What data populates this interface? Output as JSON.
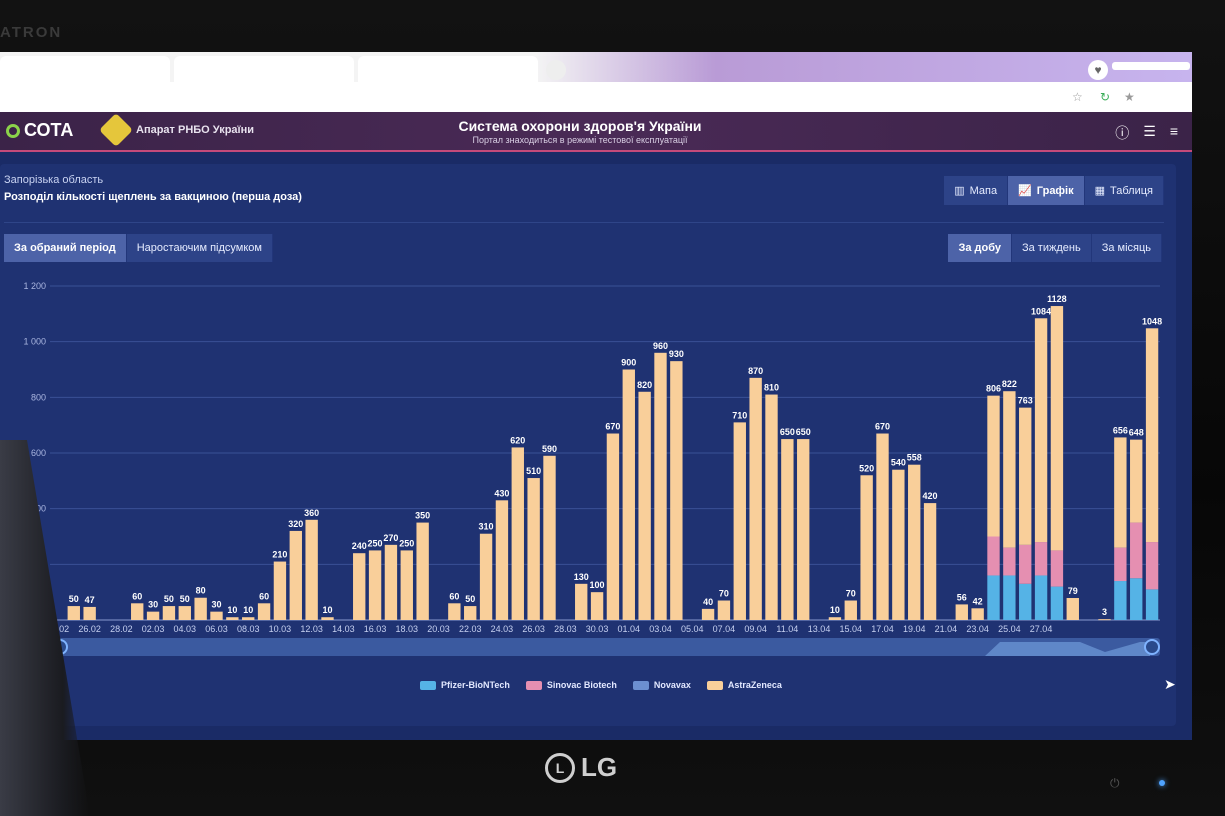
{
  "monitor": {
    "brand": "LG",
    "model": "ATRON"
  },
  "app": {
    "logo": "СОТА",
    "agency": "Апарат РНБО України",
    "title": "Система охорони здоров'я України",
    "subtitle": "Портал знаходиться в режимі тестової експлуатації"
  },
  "panel": {
    "region": "Запорізька область",
    "title": "Розподіл кількості щеплень за вакциною (перша доза)"
  },
  "view_buttons": [
    "Мапа",
    "Графік",
    "Таблиця"
  ],
  "period_buttons": [
    "За обраний період",
    "Наростаючим підсумком"
  ],
  "freq_buttons": [
    "За добу",
    "За тиждень",
    "За місяць"
  ],
  "chart_data": {
    "type": "bar",
    "stacked": true,
    "ylim": [
      0,
      1200
    ],
    "yticks": [
      "1 200",
      "1 000",
      "800",
      "600",
      "400",
      "200"
    ],
    "x_tick_labels": [
      "24.02",
      "26.02",
      "28.02",
      "02.03",
      "04.03",
      "06.03",
      "08.03",
      "10.03",
      "12.03",
      "14.03",
      "16.03",
      "18.03",
      "20.03",
      "22.03",
      "24.03",
      "26.03",
      "28.03",
      "30.03",
      "01.04",
      "03.04",
      "05.04",
      "07.04",
      "09.04",
      "11.04",
      "13.04",
      "15.04",
      "17.04",
      "19.04",
      "21.04",
      "23.04",
      "25.04",
      "27.04"
    ],
    "totals": [
      null,
      50,
      47,
      null,
      null,
      60,
      30,
      50,
      50,
      80,
      30,
      10,
      10,
      60,
      210,
      320,
      360,
      10,
      null,
      240,
      250,
      270,
      250,
      350,
      null,
      60,
      50,
      310,
      430,
      620,
      510,
      590,
      null,
      130,
      100,
      670,
      900,
      820,
      960,
      930,
      null,
      40,
      70,
      710,
      870,
      810,
      650,
      650,
      null,
      10,
      70,
      520,
      670,
      540,
      558,
      420,
      null,
      56,
      42,
      806,
      822,
      763,
      1084,
      1128,
      79,
      null,
      3,
      656,
      648,
      1048
    ],
    "series": [
      {
        "name": "Pfizer-BioNTech",
        "color": "#55b3e6",
        "values": [
          null,
          0,
          0,
          null,
          null,
          0,
          0,
          0,
          0,
          0,
          0,
          0,
          0,
          0,
          0,
          0,
          0,
          0,
          null,
          0,
          0,
          0,
          0,
          0,
          null,
          0,
          0,
          0,
          0,
          0,
          0,
          0,
          null,
          0,
          0,
          0,
          0,
          0,
          0,
          0,
          null,
          0,
          0,
          0,
          0,
          0,
          0,
          0,
          null,
          0,
          0,
          0,
          0,
          0,
          0,
          0,
          null,
          0,
          0,
          160,
          160,
          130,
          160,
          120,
          0,
          null,
          0,
          140,
          150,
          110
        ]
      },
      {
        "name": "Sinovac Biotech",
        "color": "#e58fb1",
        "values": [
          null,
          0,
          0,
          null,
          null,
          0,
          0,
          0,
          0,
          0,
          0,
          0,
          0,
          0,
          0,
          0,
          0,
          0,
          null,
          0,
          0,
          0,
          0,
          0,
          null,
          0,
          0,
          0,
          0,
          0,
          0,
          0,
          null,
          0,
          0,
          0,
          0,
          0,
          0,
          0,
          null,
          0,
          0,
          0,
          0,
          0,
          0,
          0,
          null,
          0,
          0,
          0,
          0,
          0,
          0,
          0,
          null,
          0,
          0,
          140,
          100,
          140,
          120,
          130,
          0,
          null,
          0,
          120,
          200,
          170
        ]
      },
      {
        "name": "Novavax",
        "color": "#6c8fd0",
        "values": [
          null,
          0,
          0,
          null,
          null,
          0,
          0,
          0,
          0,
          0,
          0,
          0,
          0,
          0,
          0,
          0,
          0,
          0,
          null,
          0,
          0,
          0,
          0,
          0,
          null,
          0,
          0,
          0,
          0,
          0,
          0,
          0,
          null,
          0,
          0,
          0,
          0,
          0,
          0,
          0,
          null,
          0,
          0,
          0,
          0,
          0,
          0,
          0,
          null,
          0,
          0,
          0,
          0,
          0,
          0,
          0,
          null,
          0,
          0,
          0,
          0,
          0,
          0,
          0,
          0,
          null,
          0,
          0,
          0,
          0
        ]
      },
      {
        "name": "AstraZeneca",
        "color": "#f9cf9a",
        "values": [
          null,
          50,
          47,
          null,
          null,
          60,
          30,
          50,
          50,
          80,
          30,
          10,
          10,
          60,
          210,
          320,
          360,
          10,
          null,
          240,
          250,
          270,
          250,
          350,
          null,
          60,
          50,
          310,
          430,
          620,
          510,
          590,
          null,
          130,
          100,
          670,
          900,
          820,
          960,
          930,
          null,
          40,
          70,
          710,
          870,
          810,
          650,
          650,
          null,
          10,
          70,
          520,
          670,
          540,
          558,
          420,
          null,
          56,
          42,
          506,
          562,
          493,
          804,
          878,
          79,
          null,
          3,
          396,
          298,
          768
        ]
      }
    ],
    "legend_position": "bottom-center",
    "grid": true
  }
}
